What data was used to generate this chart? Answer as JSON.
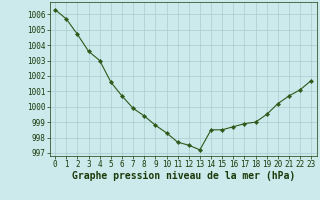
{
  "x": [
    0,
    1,
    2,
    3,
    4,
    5,
    6,
    7,
    8,
    9,
    10,
    11,
    12,
    13,
    14,
    15,
    16,
    17,
    18,
    19,
    20,
    21,
    22,
    23
  ],
  "y": [
    1006.3,
    1005.7,
    1004.7,
    1003.6,
    1003.0,
    1001.6,
    1000.7,
    999.9,
    999.4,
    998.8,
    998.3,
    997.7,
    997.5,
    997.2,
    998.5,
    998.5,
    998.7,
    998.9,
    999.0,
    999.5,
    1000.2,
    1000.7,
    1001.1,
    1001.7
  ],
  "ylim": [
    996.8,
    1006.8
  ],
  "xlim": [
    -0.5,
    23.5
  ],
  "yticks": [
    997,
    998,
    999,
    1000,
    1001,
    1002,
    1003,
    1004,
    1005,
    1006
  ],
  "xticks": [
    0,
    1,
    2,
    3,
    4,
    5,
    6,
    7,
    8,
    9,
    10,
    11,
    12,
    13,
    14,
    15,
    16,
    17,
    18,
    19,
    20,
    21,
    22,
    23
  ],
  "xlabel": "Graphe pression niveau de la mer (hPa)",
  "line_color": "#2d5a1b",
  "marker": "D",
  "marker_size": 2.2,
  "bg_color": "#cce9eb",
  "grid_color": "#aacdd0",
  "label_color": "#1a3a0a",
  "tick_fontsize": 5.5,
  "xlabel_fontsize": 7.0
}
